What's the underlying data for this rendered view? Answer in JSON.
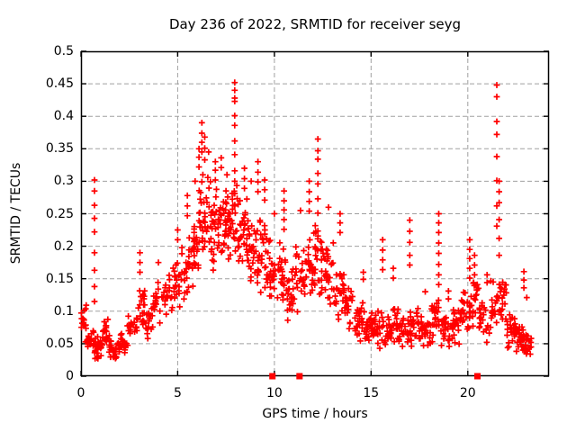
{
  "title": "Day 236 of 2022, SRMTID for receiver seyg",
  "axes": {
    "xlabel": "GPS time / hours",
    "ylabel": "SRMTID / TECUs"
  },
  "colors": {
    "marker": "#ff0000",
    "grid": "#a0a0a0",
    "axis": "#000000",
    "background": "#ffffff",
    "text": "#000000"
  },
  "chart_data": {
    "type": "scatter",
    "marker": "plus",
    "series_name": "SRMTID",
    "series_color": "#ff0000",
    "title": "Day 236 of 2022, SRMTID for receiver seyg",
    "xlabel": "GPS time / hours",
    "ylabel": "SRMTID / TECUs",
    "xlim": [
      0,
      24.2
    ],
    "ylim": [
      0,
      0.5
    ],
    "grid": true,
    "xticks": [
      {
        "v": 0,
        "label": "0"
      },
      {
        "v": 5,
        "label": "5"
      },
      {
        "v": 10,
        "label": "10"
      },
      {
        "v": 15,
        "label": "15"
      },
      {
        "v": 20,
        "label": "20"
      }
    ],
    "yticks": [
      {
        "v": 0,
        "label": "0"
      },
      {
        "v": 0.05,
        "label": "0.05"
      },
      {
        "v": 0.1,
        "label": "0.1"
      },
      {
        "v": 0.15,
        "label": "0.15"
      },
      {
        "v": 0.2,
        "label": "0.2"
      },
      {
        "v": 0.25,
        "label": "0.25"
      },
      {
        "v": 0.3,
        "label": "0.3"
      },
      {
        "v": 0.35,
        "label": "0.35"
      },
      {
        "v": 0.4,
        "label": "0.4"
      },
      {
        "v": 0.45,
        "label": "0.45"
      },
      {
        "v": 0.5,
        "label": "0.5"
      }
    ],
    "axis_markers": {
      "shape": "filled-square",
      "y": 0,
      "x": [
        9.9,
        11.3,
        20.5
      ]
    },
    "points": [
      [
        0.7,
        0.302
      ],
      [
        0.7,
        0.285
      ],
      [
        0.7,
        0.263
      ],
      [
        0.7,
        0.243
      ],
      [
        0.7,
        0.222
      ],
      [
        0.7,
        0.19
      ],
      [
        0.7,
        0.163
      ],
      [
        0.7,
        0.138
      ],
      [
        0.7,
        0.115
      ],
      [
        3.05,
        0.19
      ],
      [
        3.05,
        0.175
      ],
      [
        3.05,
        0.16
      ],
      [
        4.0,
        0.175
      ],
      [
        5.0,
        0.225
      ],
      [
        5.0,
        0.21
      ],
      [
        5.5,
        0.278
      ],
      [
        5.5,
        0.262
      ],
      [
        5.5,
        0.247
      ],
      [
        5.9,
        0.3
      ],
      [
        6.1,
        0.35
      ],
      [
        6.1,
        0.337
      ],
      [
        6.1,
        0.322
      ],
      [
        6.25,
        0.39
      ],
      [
        6.25,
        0.374
      ],
      [
        6.25,
        0.36
      ],
      [
        6.25,
        0.345
      ],
      [
        6.4,
        0.368
      ],
      [
        6.4,
        0.351
      ],
      [
        6.4,
        0.333
      ],
      [
        6.6,
        0.345
      ],
      [
        6.95,
        0.33
      ],
      [
        6.95,
        0.317
      ],
      [
        6.95,
        0.302
      ],
      [
        7.25,
        0.336
      ],
      [
        7.25,
        0.321
      ],
      [
        7.55,
        0.31
      ],
      [
        7.95,
        0.452
      ],
      [
        7.95,
        0.44
      ],
      [
        7.95,
        0.428
      ],
      [
        7.95,
        0.423
      ],
      [
        7.95,
        0.401
      ],
      [
        7.95,
        0.386
      ],
      [
        7.95,
        0.362
      ],
      [
        7.95,
        0.341
      ],
      [
        7.95,
        0.316
      ],
      [
        7.95,
        0.3
      ],
      [
        7.95,
        0.281
      ],
      [
        7.95,
        0.262
      ],
      [
        8.45,
        0.32
      ],
      [
        8.45,
        0.304
      ],
      [
        8.45,
        0.289
      ],
      [
        8.8,
        0.3
      ],
      [
        9.15,
        0.33
      ],
      [
        9.15,
        0.314
      ],
      [
        9.15,
        0.299
      ],
      [
        9.15,
        0.284
      ],
      [
        9.5,
        0.302
      ],
      [
        9.5,
        0.287
      ],
      [
        9.5,
        0.271
      ],
      [
        10.0,
        0.25
      ],
      [
        10.5,
        0.285
      ],
      [
        10.5,
        0.27
      ],
      [
        10.5,
        0.256
      ],
      [
        10.5,
        0.241
      ],
      [
        10.5,
        0.226
      ],
      [
        11.35,
        0.255
      ],
      [
        11.8,
        0.3
      ],
      [
        11.8,
        0.284
      ],
      [
        11.8,
        0.269
      ],
      [
        11.8,
        0.254
      ],
      [
        12.25,
        0.365
      ],
      [
        12.25,
        0.347
      ],
      [
        12.25,
        0.334
      ],
      [
        12.25,
        0.312
      ],
      [
        12.25,
        0.296
      ],
      [
        12.25,
        0.273
      ],
      [
        12.25,
        0.251
      ],
      [
        12.8,
        0.26
      ],
      [
        13.4,
        0.25
      ],
      [
        13.4,
        0.236
      ],
      [
        13.4,
        0.221
      ],
      [
        14.6,
        0.16
      ],
      [
        14.6,
        0.149
      ],
      [
        15.6,
        0.21
      ],
      [
        15.6,
        0.194
      ],
      [
        15.6,
        0.179
      ],
      [
        15.6,
        0.164
      ],
      [
        16.15,
        0.166
      ],
      [
        16.15,
        0.151
      ],
      [
        17.0,
        0.24
      ],
      [
        17.0,
        0.223
      ],
      [
        17.0,
        0.206
      ],
      [
        17.0,
        0.186
      ],
      [
        17.0,
        0.171
      ],
      [
        17.8,
        0.13
      ],
      [
        18.5,
        0.25
      ],
      [
        18.5,
        0.236
      ],
      [
        18.5,
        0.221
      ],
      [
        18.5,
        0.205
      ],
      [
        18.5,
        0.189
      ],
      [
        18.5,
        0.172
      ],
      [
        18.5,
        0.156
      ],
      [
        18.5,
        0.141
      ],
      [
        19.0,
        0.131
      ],
      [
        19.0,
        0.119
      ],
      [
        20.1,
        0.21
      ],
      [
        20.1,
        0.195
      ],
      [
        20.1,
        0.181
      ],
      [
        20.1,
        0.166
      ],
      [
        20.1,
        0.151
      ],
      [
        20.35,
        0.186
      ],
      [
        20.35,
        0.171
      ],
      [
        20.35,
        0.156
      ],
      [
        21.0,
        0.156
      ],
      [
        21.0,
        0.144
      ],
      [
        21.5,
        0.448
      ],
      [
        21.5,
        0.43
      ],
      [
        21.5,
        0.392
      ],
      [
        21.5,
        0.372
      ],
      [
        21.5,
        0.338
      ],
      [
        21.5,
        0.301
      ],
      [
        21.5,
        0.262
      ],
      [
        21.5,
        0.231
      ],
      [
        21.62,
        0.3
      ],
      [
        21.62,
        0.284
      ],
      [
        21.62,
        0.267
      ],
      [
        21.62,
        0.241
      ],
      [
        21.62,
        0.212
      ],
      [
        21.62,
        0.186
      ],
      [
        22.9,
        0.161
      ],
      [
        22.9,
        0.148
      ],
      [
        22.9,
        0.136
      ],
      [
        23.05,
        0.121
      ]
    ],
    "density_bands": [
      [
        0.0,
        0.3,
        0.045,
        0.115,
        16
      ],
      [
        0.3,
        0.7,
        0.03,
        0.08,
        22
      ],
      [
        0.7,
        1.1,
        0.022,
        0.065,
        24
      ],
      [
        1.1,
        1.5,
        0.035,
        0.09,
        22
      ],
      [
        1.5,
        2.0,
        0.022,
        0.06,
        26
      ],
      [
        2.0,
        2.4,
        0.03,
        0.07,
        18
      ],
      [
        2.4,
        2.9,
        0.045,
        0.1,
        20
      ],
      [
        2.9,
        3.3,
        0.06,
        0.135,
        20
      ],
      [
        3.3,
        3.7,
        0.05,
        0.115,
        18
      ],
      [
        3.7,
        4.2,
        0.07,
        0.15,
        20
      ],
      [
        4.2,
        4.7,
        0.09,
        0.165,
        20
      ],
      [
        4.7,
        5.2,
        0.1,
        0.19,
        22
      ],
      [
        5.2,
        5.7,
        0.11,
        0.22,
        24
      ],
      [
        5.7,
        6.1,
        0.13,
        0.27,
        24
      ],
      [
        6.1,
        6.6,
        0.16,
        0.32,
        30
      ],
      [
        6.6,
        7.1,
        0.15,
        0.31,
        32
      ],
      [
        7.1,
        7.6,
        0.16,
        0.3,
        34
      ],
      [
        7.6,
        8.1,
        0.17,
        0.31,
        30
      ],
      [
        8.1,
        8.6,
        0.15,
        0.28,
        30
      ],
      [
        8.6,
        9.1,
        0.13,
        0.26,
        28
      ],
      [
        9.1,
        9.6,
        0.12,
        0.25,
        28
      ],
      [
        9.6,
        10.1,
        0.1,
        0.22,
        26
      ],
      [
        10.1,
        10.6,
        0.1,
        0.21,
        24
      ],
      [
        10.6,
        11.1,
        0.08,
        0.19,
        24
      ],
      [
        11.1,
        11.6,
        0.09,
        0.21,
        24
      ],
      [
        11.6,
        12.1,
        0.11,
        0.24,
        26
      ],
      [
        12.1,
        12.6,
        0.11,
        0.25,
        28
      ],
      [
        12.6,
        13.1,
        0.09,
        0.22,
        26
      ],
      [
        13.1,
        13.6,
        0.07,
        0.19,
        24
      ],
      [
        13.6,
        14.1,
        0.06,
        0.15,
        24
      ],
      [
        14.1,
        14.6,
        0.05,
        0.12,
        24
      ],
      [
        14.6,
        15.1,
        0.045,
        0.11,
        24
      ],
      [
        15.1,
        15.6,
        0.04,
        0.105,
        24
      ],
      [
        15.6,
        16.1,
        0.04,
        0.1,
        24
      ],
      [
        16.1,
        16.6,
        0.045,
        0.11,
        24
      ],
      [
        16.6,
        17.1,
        0.04,
        0.105,
        24
      ],
      [
        17.1,
        17.6,
        0.045,
        0.11,
        24
      ],
      [
        17.6,
        18.1,
        0.04,
        0.1,
        24
      ],
      [
        18.1,
        18.6,
        0.05,
        0.13,
        24
      ],
      [
        18.6,
        19.1,
        0.04,
        0.1,
        24
      ],
      [
        19.1,
        19.6,
        0.045,
        0.105,
        24
      ],
      [
        19.6,
        20.1,
        0.055,
        0.14,
        24
      ],
      [
        20.1,
        20.6,
        0.06,
        0.15,
        22
      ],
      [
        20.6,
        21.1,
        0.05,
        0.13,
        22
      ],
      [
        21.1,
        21.5,
        0.06,
        0.16,
        18
      ],
      [
        21.5,
        22.0,
        0.07,
        0.16,
        26
      ],
      [
        22.0,
        22.5,
        0.04,
        0.11,
        28
      ],
      [
        22.5,
        23.0,
        0.03,
        0.09,
        28
      ],
      [
        23.0,
        23.3,
        0.028,
        0.075,
        16
      ]
    ],
    "seed": 987654321
  }
}
